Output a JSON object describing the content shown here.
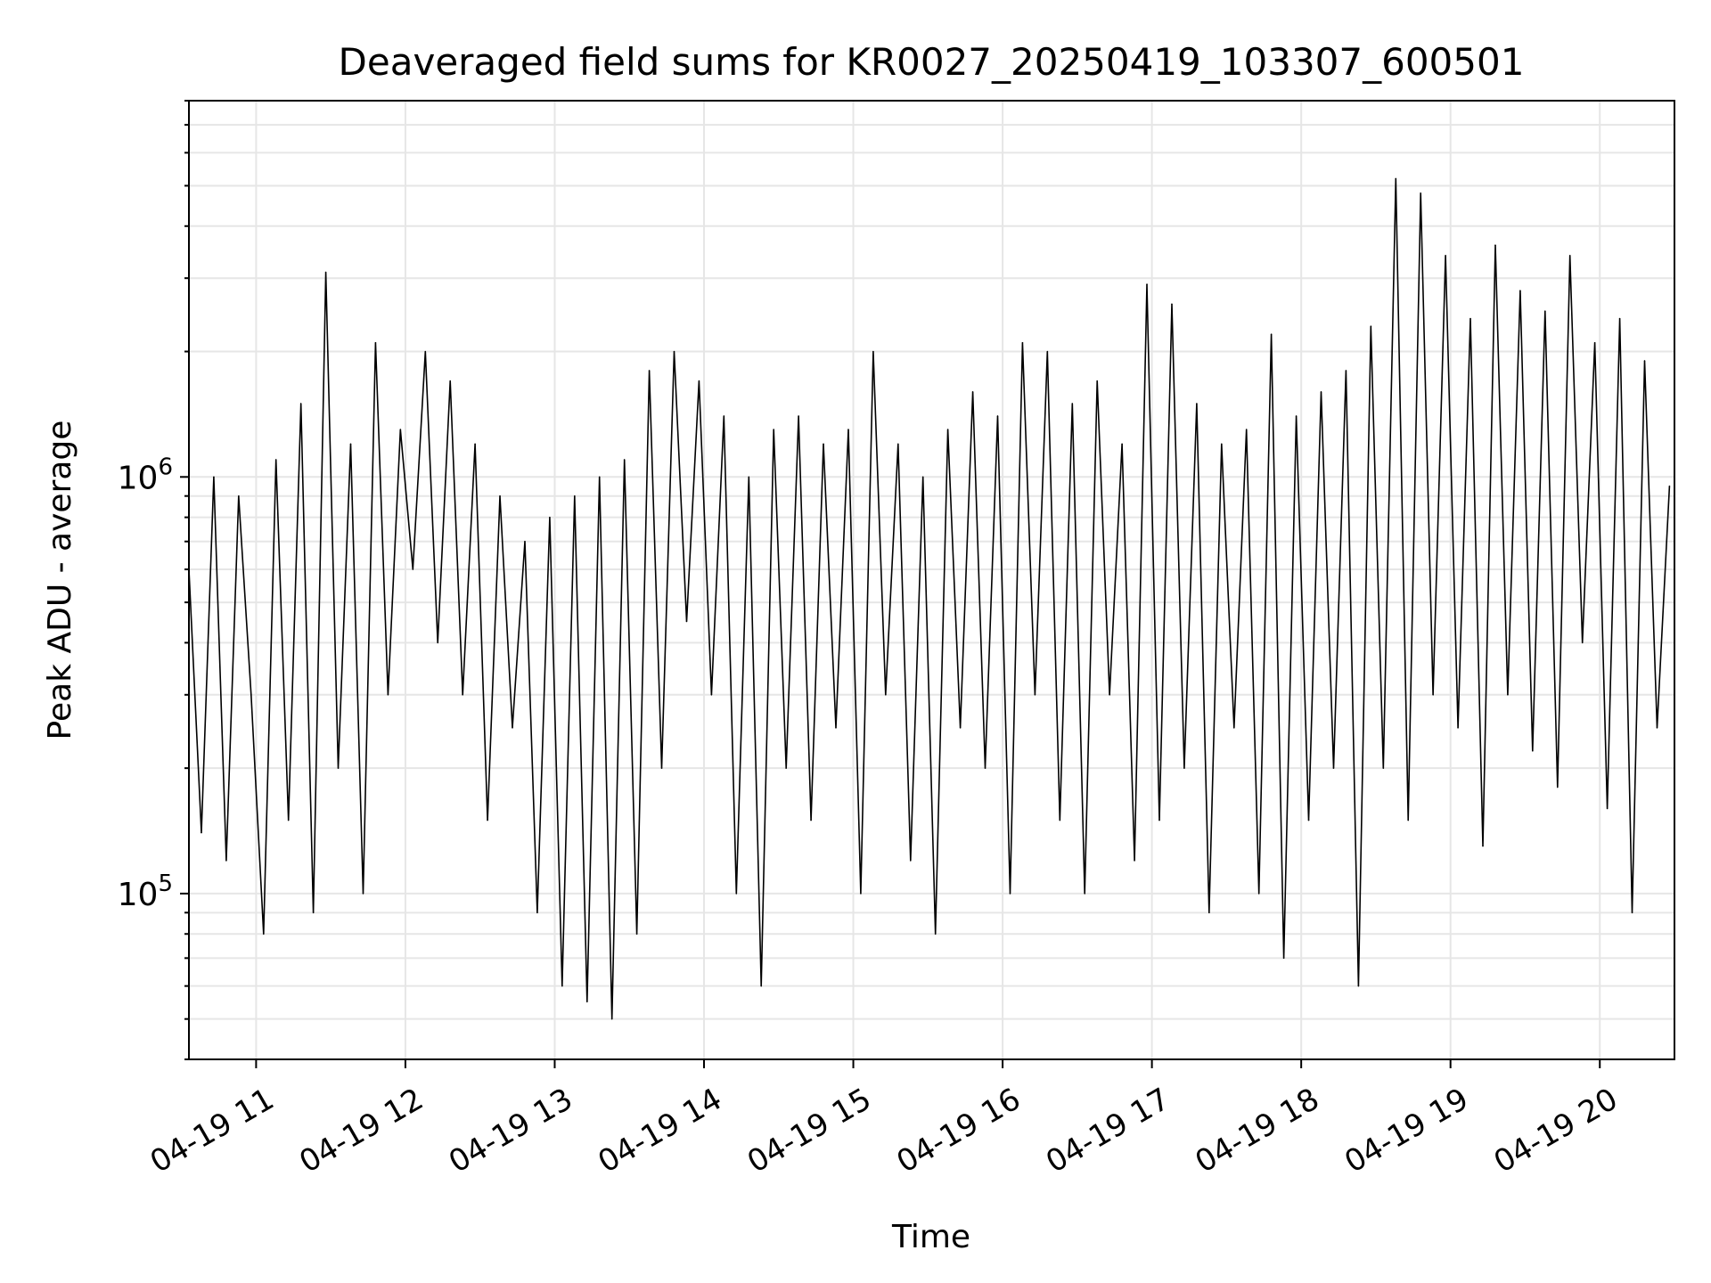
{
  "chart_data": {
    "type": "line",
    "title": "Deaveraged field sums for KR0027_20250419_103307_600501",
    "xlabel": "Time",
    "ylabel": "Peak ADU - average",
    "x_range": [
      "2025-04-19 10:33",
      "2025-04-19 20:30"
    ],
    "y_range": [
      40000,
      8000000
    ],
    "y_scale": "log",
    "grid": true,
    "line_color": "#000000",
    "grid_color": "#e6e6e6",
    "x_ticks": [
      {
        "value": "2025-04-19 11:00",
        "label": "04-19 11"
      },
      {
        "value": "2025-04-19 12:00",
        "label": "04-19 12"
      },
      {
        "value": "2025-04-19 13:00",
        "label": "04-19 13"
      },
      {
        "value": "2025-04-19 14:00",
        "label": "04-19 14"
      },
      {
        "value": "2025-04-19 15:00",
        "label": "04-19 15"
      },
      {
        "value": "2025-04-19 16:00",
        "label": "04-19 16"
      },
      {
        "value": "2025-04-19 17:00",
        "label": "04-19 17"
      },
      {
        "value": "2025-04-19 18:00",
        "label": "04-19 18"
      },
      {
        "value": "2025-04-19 19:00",
        "label": "04-19 19"
      },
      {
        "value": "2025-04-19 20:00",
        "label": "04-19 20"
      }
    ],
    "y_ticks": [
      {
        "value": 100000,
        "base": "10",
        "exp": "5"
      },
      {
        "value": 1000000,
        "base": "10",
        "exp": "6"
      }
    ],
    "series": [
      {
        "x": [
          "2025-04-19 10:33",
          "2025-04-19 10:38",
          "2025-04-19 10:43",
          "2025-04-19 10:48",
          "2025-04-19 10:53",
          "2025-04-19 10:58",
          "2025-04-19 11:03",
          "2025-04-19 11:08",
          "2025-04-19 11:13",
          "2025-04-19 11:18",
          "2025-04-19 11:23",
          "2025-04-19 11:28",
          "2025-04-19 11:33",
          "2025-04-19 11:38",
          "2025-04-19 11:43",
          "2025-04-19 11:48",
          "2025-04-19 11:53",
          "2025-04-19 11:58",
          "2025-04-19 12:03",
          "2025-04-19 12:08",
          "2025-04-19 12:13",
          "2025-04-19 12:18",
          "2025-04-19 12:23",
          "2025-04-19 12:28",
          "2025-04-19 12:33",
          "2025-04-19 12:38",
          "2025-04-19 12:43",
          "2025-04-19 12:48",
          "2025-04-19 12:53",
          "2025-04-19 12:58",
          "2025-04-19 13:03",
          "2025-04-19 13:08",
          "2025-04-19 13:13",
          "2025-04-19 13:18",
          "2025-04-19 13:23",
          "2025-04-19 13:28",
          "2025-04-19 13:33",
          "2025-04-19 13:38",
          "2025-04-19 13:43",
          "2025-04-19 13:48",
          "2025-04-19 13:53",
          "2025-04-19 13:58",
          "2025-04-19 14:03",
          "2025-04-19 14:08",
          "2025-04-19 14:13",
          "2025-04-19 14:18",
          "2025-04-19 14:23",
          "2025-04-19 14:28",
          "2025-04-19 14:33",
          "2025-04-19 14:38",
          "2025-04-19 14:43",
          "2025-04-19 14:48",
          "2025-04-19 14:53",
          "2025-04-19 14:58",
          "2025-04-19 15:03",
          "2025-04-19 15:08",
          "2025-04-19 15:13",
          "2025-04-19 15:18",
          "2025-04-19 15:23",
          "2025-04-19 15:28",
          "2025-04-19 15:33",
          "2025-04-19 15:38",
          "2025-04-19 15:43",
          "2025-04-19 15:48",
          "2025-04-19 15:53",
          "2025-04-19 15:58",
          "2025-04-19 16:03",
          "2025-04-19 16:08",
          "2025-04-19 16:13",
          "2025-04-19 16:18",
          "2025-04-19 16:23",
          "2025-04-19 16:28",
          "2025-04-19 16:33",
          "2025-04-19 16:38",
          "2025-04-19 16:43",
          "2025-04-19 16:48",
          "2025-04-19 16:53",
          "2025-04-19 16:58",
          "2025-04-19 17:03",
          "2025-04-19 17:08",
          "2025-04-19 17:13",
          "2025-04-19 17:18",
          "2025-04-19 17:23",
          "2025-04-19 17:28",
          "2025-04-19 17:33",
          "2025-04-19 17:38",
          "2025-04-19 17:43",
          "2025-04-19 17:48",
          "2025-04-19 17:53",
          "2025-04-19 17:58",
          "2025-04-19 18:03",
          "2025-04-19 18:08",
          "2025-04-19 18:13",
          "2025-04-19 18:18",
          "2025-04-19 18:23",
          "2025-04-19 18:28",
          "2025-04-19 18:33",
          "2025-04-19 18:38",
          "2025-04-19 18:43",
          "2025-04-19 18:48",
          "2025-04-19 18:53",
          "2025-04-19 18:58",
          "2025-04-19 19:03",
          "2025-04-19 19:08",
          "2025-04-19 19:13",
          "2025-04-19 19:18",
          "2025-04-19 19:23",
          "2025-04-19 19:28",
          "2025-04-19 19:33",
          "2025-04-19 19:38",
          "2025-04-19 19:43",
          "2025-04-19 19:48",
          "2025-04-19 19:53",
          "2025-04-19 19:58",
          "2025-04-19 20:03",
          "2025-04-19 20:08",
          "2025-04-19 20:13",
          "2025-04-19 20:18",
          "2025-04-19 20:23",
          "2025-04-19 20:28"
        ],
        "y": [
          600000,
          140000,
          1000000,
          120000,
          900000,
          300000,
          80000,
          1100000,
          150000,
          1500000,
          90000,
          3100000,
          200000,
          1200000,
          100000,
          2100000,
          300000,
          1300000,
          600000,
          2000000,
          400000,
          1700000,
          300000,
          1200000,
          150000,
          900000,
          250000,
          700000,
          90000,
          800000,
          60000,
          900000,
          55000,
          1000000,
          50000,
          1100000,
          80000,
          1800000,
          200000,
          2000000,
          450000,
          1700000,
          300000,
          1400000,
          100000,
          1000000,
          60000,
          1300000,
          200000,
          1400000,
          150000,
          1200000,
          250000,
          1300000,
          100000,
          2000000,
          300000,
          1200000,
          120000,
          1000000,
          80000,
          1300000,
          250000,
          1600000,
          200000,
          1400000,
          100000,
          2100000,
          300000,
          2000000,
          150000,
          1500000,
          100000,
          1700000,
          300000,
          1200000,
          120000,
          2900000,
          150000,
          2600000,
          200000,
          1500000,
          90000,
          1200000,
          250000,
          1300000,
          100000,
          2200000,
          70000,
          1400000,
          150000,
          1600000,
          200000,
          1800000,
          60000,
          2300000,
          200000,
          5200000,
          150000,
          4800000,
          300000,
          3400000,
          250000,
          2400000,
          130000,
          3600000,
          300000,
          2800000,
          220000,
          2500000,
          180000,
          3400000,
          400000,
          2100000,
          160000,
          2400000,
          90000,
          1900000,
          250000,
          950000
        ]
      }
    ]
  }
}
